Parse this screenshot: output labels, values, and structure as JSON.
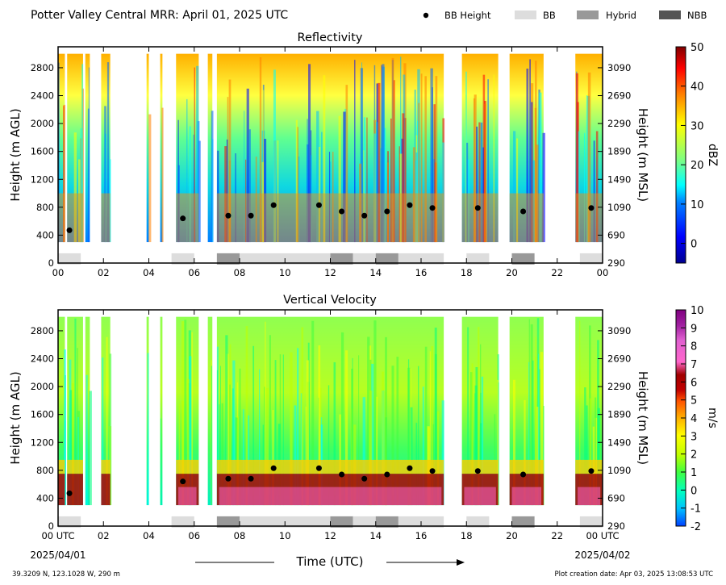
{
  "header": {
    "title": "Potter Valley Central MRR:  April 01, 2025 UTC",
    "legend": [
      {
        "label": "BB Height",
        "kind": "dot",
        "color": "#000000"
      },
      {
        "label": "BB",
        "kind": "box",
        "color": "#dddddd"
      },
      {
        "label": "Hybrid",
        "kind": "box",
        "color": "#999999"
      },
      {
        "label": "NBB",
        "kind": "box",
        "color": "#555555"
      }
    ]
  },
  "footer": {
    "location": "39.3209 N, 123.1028 W, 290 m",
    "creation": "Plot creation date: Apr 03, 2025 13:08:53 UTC",
    "xlabel": "Time (UTC)",
    "date_start": "2025/04/01",
    "date_end": "2025/04/02"
  },
  "x_ticks": [
    "00 UTC",
    "02",
    "04",
    "06",
    "08",
    "10",
    "12",
    "14",
    "16",
    "18",
    "20",
    "22",
    "00 UTC"
  ],
  "x_ticks_top": [
    "00",
    "02",
    "04",
    "06",
    "08",
    "10",
    "12",
    "14",
    "16",
    "18",
    "20",
    "22",
    "00"
  ],
  "y_ticks": [
    "2800",
    "2400",
    "2000",
    "1600",
    "1200",
    "800",
    "400",
    "0"
  ],
  "y2_ticks": [
    "3090",
    "2690",
    "2290",
    "1890",
    "1490",
    "1090",
    "690",
    "290"
  ],
  "chart_data": [
    {
      "type": "heatmap",
      "title": "Reflectivity",
      "xlabel": "",
      "ylabel": "Height (m AGL)",
      "y2label": "Height (m MSL)",
      "colorbar_label": "dBZ",
      "colorbar_ticks": [
        50,
        40,
        30,
        20,
        10,
        0
      ],
      "clim": [
        -5,
        50
      ],
      "xlim": [
        0,
        24
      ],
      "ylim": [
        0,
        3100
      ],
      "y2lim": [
        290,
        3390
      ],
      "grid": false,
      "bb_height": [
        {
          "t": 0.5,
          "h": 470
        },
        {
          "t": 5.5,
          "h": 640
        },
        {
          "t": 7.5,
          "h": 680
        },
        {
          "t": 8.5,
          "h": 680
        },
        {
          "t": 9.5,
          "h": 830
        },
        {
          "t": 11.5,
          "h": 830
        },
        {
          "t": 12.5,
          "h": 740
        },
        {
          "t": 13.5,
          "h": 680
        },
        {
          "t": 14.5,
          "h": 740
        },
        {
          "t": 15.5,
          "h": 830
        },
        {
          "t": 16.5,
          "h": 790
        },
        {
          "t": 18.5,
          "h": 790
        },
        {
          "t": 20.5,
          "h": 740
        },
        {
          "t": 23.5,
          "h": 790
        }
      ],
      "bb_type": [
        {
          "start": 0,
          "end": 1,
          "type": "BB"
        },
        {
          "start": 5,
          "end": 6,
          "type": "BB"
        },
        {
          "start": 7,
          "end": 8,
          "type": "Hybrid"
        },
        {
          "start": 8,
          "end": 12,
          "type": "BB"
        },
        {
          "start": 12,
          "end": 13,
          "type": "Hybrid"
        },
        {
          "start": 13,
          "end": 14,
          "type": "BB"
        },
        {
          "start": 14,
          "end": 15,
          "type": "Hybrid"
        },
        {
          "start": 15,
          "end": 17,
          "type": "BB"
        },
        {
          "start": 18,
          "end": 19,
          "type": "BB"
        },
        {
          "start": 20,
          "end": 21,
          "type": "Hybrid"
        },
        {
          "start": 23,
          "end": 24,
          "type": "BB"
        }
      ]
    },
    {
      "type": "heatmap",
      "title": "Vertical Velocity",
      "xlabel": "Time (UTC)",
      "ylabel": "Height (m AGL)",
      "y2label": "Height (m MSL)",
      "colorbar_label": "m/s",
      "colorbar_ticks": [
        10,
        9,
        8,
        7,
        6,
        5,
        4,
        3,
        2,
        1,
        0,
        -1,
        -2
      ],
      "clim": [
        -2,
        10
      ],
      "xlim": [
        0,
        24
      ],
      "ylim": [
        0,
        3100
      ],
      "y2lim": [
        290,
        3390
      ],
      "grid": false,
      "bb_height": [
        {
          "t": 0.5,
          "h": 470
        },
        {
          "t": 5.5,
          "h": 640
        },
        {
          "t": 7.5,
          "h": 680
        },
        {
          "t": 8.5,
          "h": 680
        },
        {
          "t": 9.5,
          "h": 830
        },
        {
          "t": 11.5,
          "h": 830
        },
        {
          "t": 12.5,
          "h": 740
        },
        {
          "t": 13.5,
          "h": 680
        },
        {
          "t": 14.5,
          "h": 740
        },
        {
          "t": 15.5,
          "h": 830
        },
        {
          "t": 16.5,
          "h": 790
        },
        {
          "t": 18.5,
          "h": 790
        },
        {
          "t": 20.5,
          "h": 740
        },
        {
          "t": 23.5,
          "h": 790
        }
      ],
      "bb_type": [
        {
          "start": 0,
          "end": 1,
          "type": "BB"
        },
        {
          "start": 5,
          "end": 6,
          "type": "BB"
        },
        {
          "start": 7,
          "end": 8,
          "type": "Hybrid"
        },
        {
          "start": 8,
          "end": 12,
          "type": "BB"
        },
        {
          "start": 12,
          "end": 13,
          "type": "Hybrid"
        },
        {
          "start": 13,
          "end": 14,
          "type": "BB"
        },
        {
          "start": 14,
          "end": 15,
          "type": "Hybrid"
        },
        {
          "start": 15,
          "end": 17,
          "type": "BB"
        },
        {
          "start": 18,
          "end": 19,
          "type": "BB"
        },
        {
          "start": 20,
          "end": 21,
          "type": "Hybrid"
        },
        {
          "start": 23,
          "end": 24,
          "type": "BB"
        }
      ]
    }
  ],
  "precip_periods": [
    [
      0.0,
      0.3
    ],
    [
      0.4,
      1.1
    ],
    [
      1.2,
      1.4
    ],
    [
      1.9,
      2.3
    ],
    [
      3.9,
      4.0
    ],
    [
      4.5,
      4.6
    ],
    [
      5.2,
      6.2
    ],
    [
      6.6,
      6.8
    ],
    [
      7.0,
      17.0
    ],
    [
      17.8,
      19.4
    ],
    [
      19.9,
      21.4
    ],
    [
      22.8,
      24.0
    ]
  ],
  "colors": {
    "bb": "#dddddd",
    "hybrid": "#999999",
    "nbb": "#555555",
    "reflectivity_scale": [
      "#00008f",
      "#0000ff",
      "#0080ff",
      "#00ffff",
      "#80ff80",
      "#ffff00",
      "#ff8000",
      "#ff0000",
      "#800000"
    ],
    "velocity_scale": [
      "#0040ff",
      "#00c0ff",
      "#00ffc0",
      "#40ff40",
      "#c0ff00",
      "#ffff00",
      "#ffb000",
      "#ff5000",
      "#c00000",
      "#a00000",
      "#ff66cc",
      "#e060d0",
      "#a020a0",
      "#800080"
    ]
  }
}
